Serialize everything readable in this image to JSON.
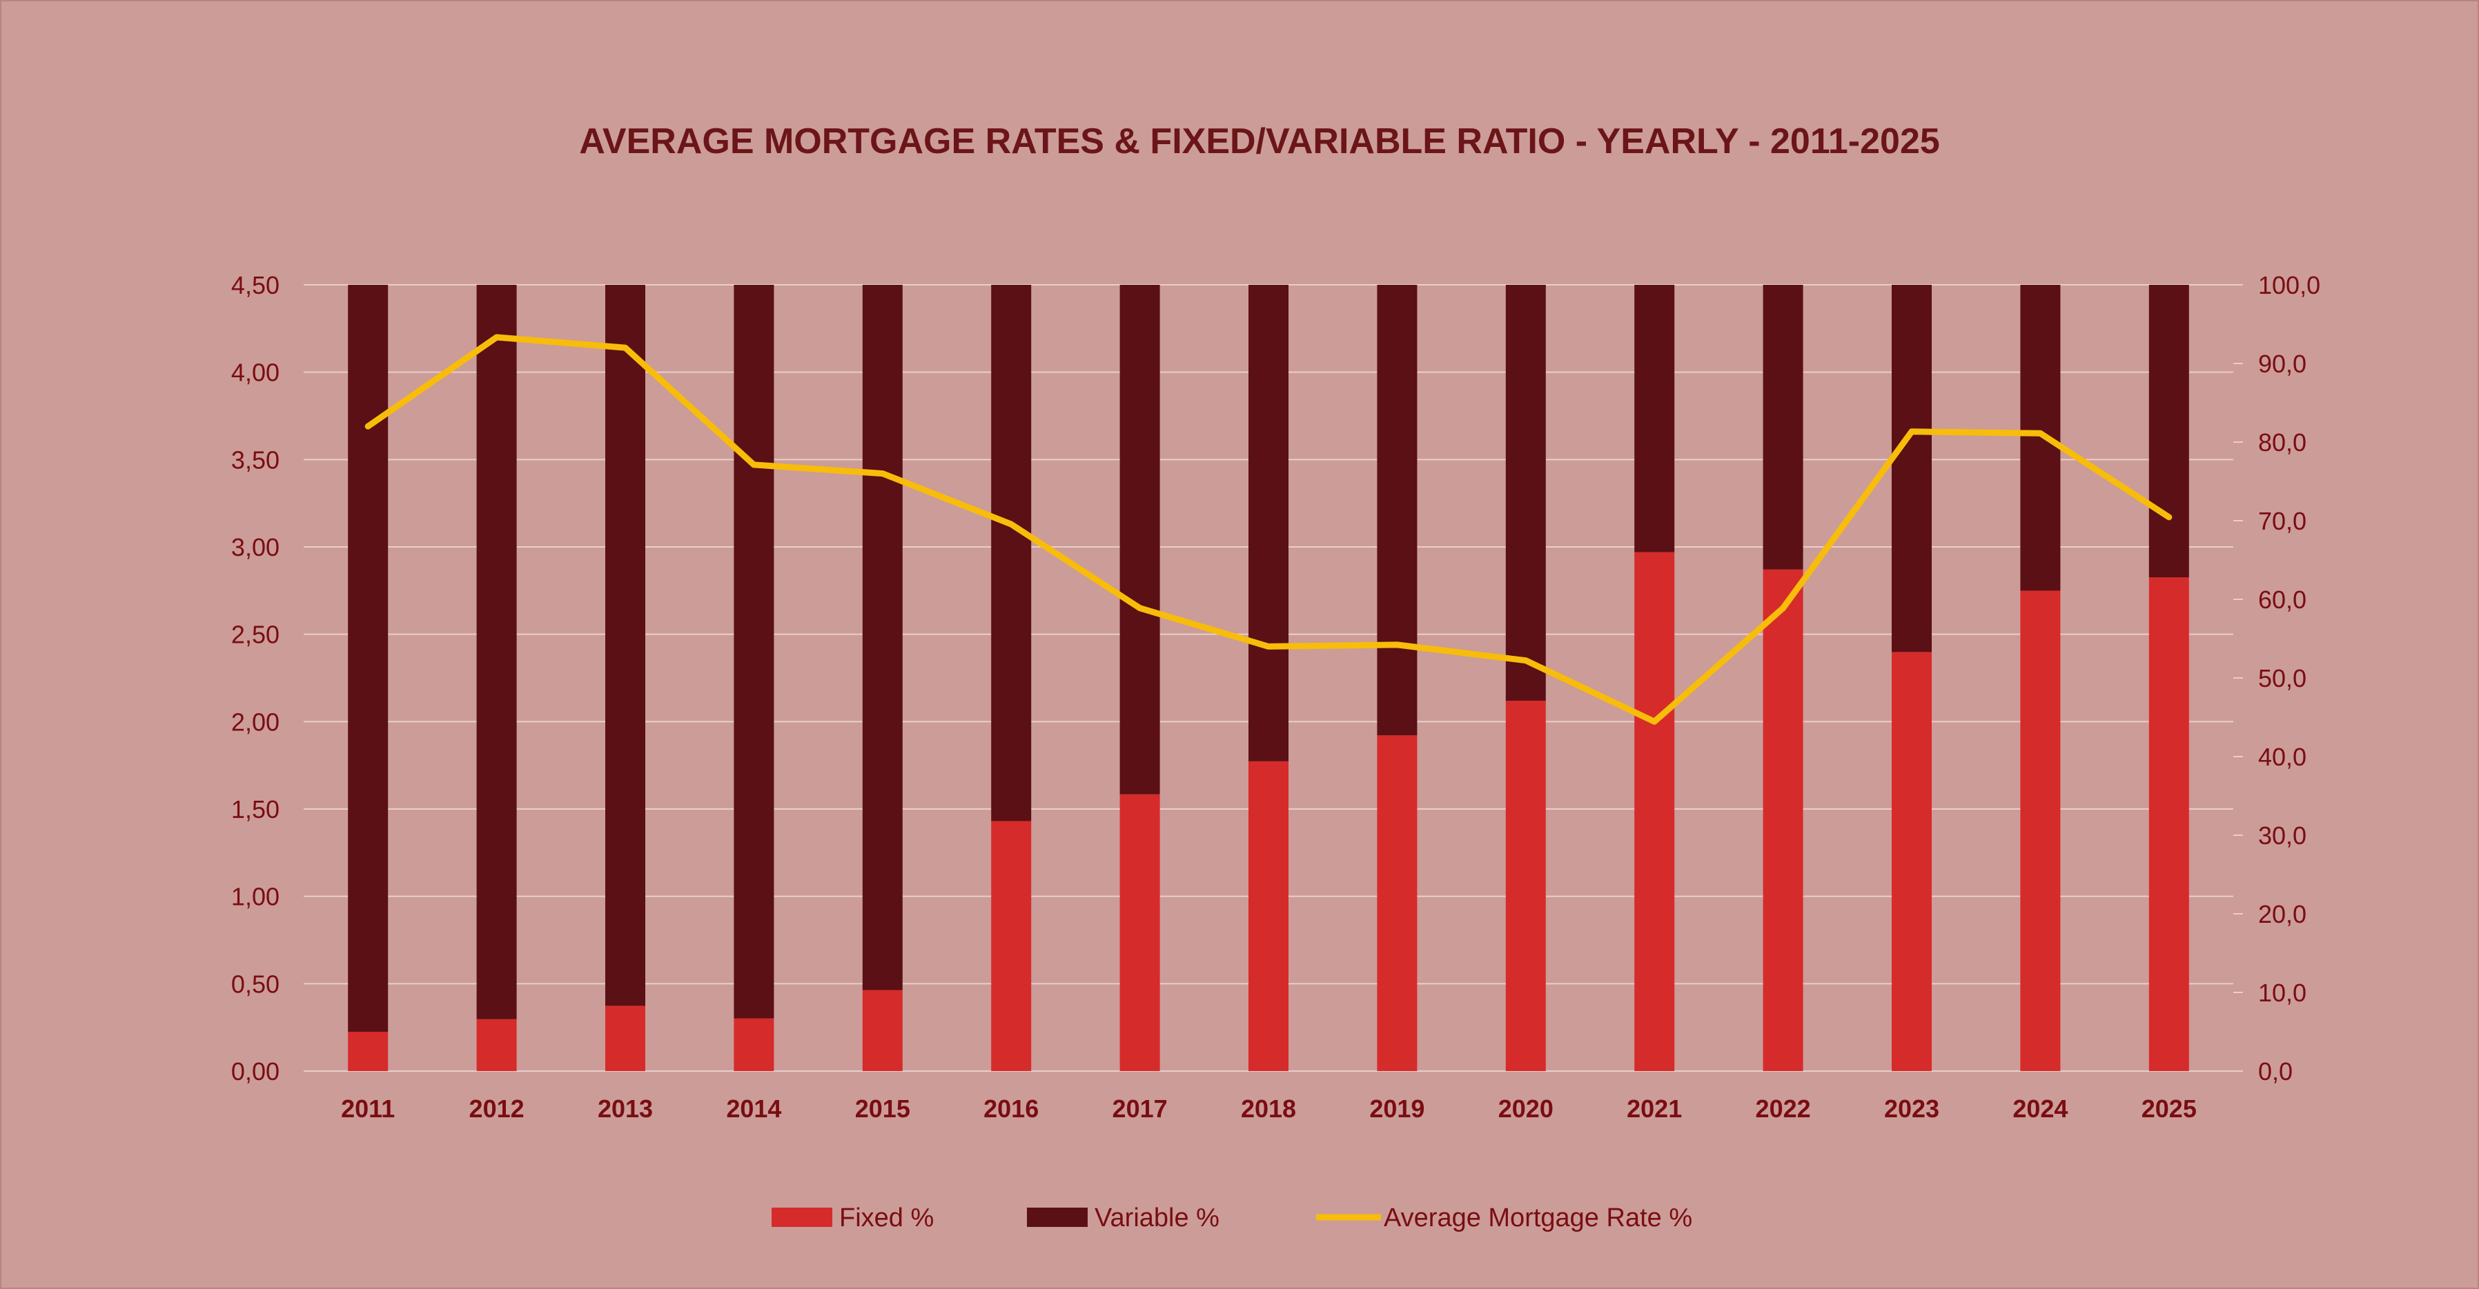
{
  "colors": {
    "background": "#cc9c98",
    "border": "#b98480",
    "title": "#6b1519",
    "fixed": "#d62b2b",
    "variable": "#5a1014",
    "line": "#f7bd0a",
    "grid": "#e8cfcb",
    "axis_text": "#7a0d12"
  },
  "chart_data": {
    "type": "bar",
    "stacked": true,
    "title": "AVERAGE MORTGAGE RATES & FIXED/VARIABLE RATIO - YEARLY - 2011-2025",
    "categories": [
      "2011",
      "2012",
      "2013",
      "2014",
      "2015",
      "2016",
      "2017",
      "2018",
      "2019",
      "2020",
      "2021",
      "2022",
      "2023",
      "2024",
      "2025"
    ],
    "series": [
      {
        "name": "Fixed %",
        "type": "bar",
        "axis": "right",
        "values": [
          5.0,
          6.6,
          8.3,
          6.7,
          10.3,
          31.8,
          35.2,
          39.4,
          42.7,
          47.1,
          66.0,
          63.8,
          53.3,
          61.1,
          62.8
        ]
      },
      {
        "name": "Variable %",
        "type": "bar",
        "axis": "right",
        "values": [
          95.0,
          93.4,
          91.7,
          93.3,
          89.7,
          68.2,
          64.8,
          60.6,
          57.3,
          52.9,
          34.0,
          36.2,
          46.7,
          38.9,
          37.2
        ]
      },
      {
        "name": "Average Mortgage Rate %",
        "type": "line",
        "axis": "left",
        "values": [
          3.69,
          4.2,
          4.14,
          3.47,
          3.42,
          3.13,
          2.65,
          2.43,
          2.44,
          2.35,
          2.0,
          2.65,
          3.66,
          3.65,
          3.17
        ]
      }
    ],
    "y_left": {
      "min": 0,
      "max": 4.5,
      "ticks": [
        "0,00",
        "0,50",
        "1,00",
        "1,50",
        "2,00",
        "2,50",
        "3,00",
        "3,50",
        "4,00",
        "4,50"
      ]
    },
    "y_right": {
      "min": 0,
      "max": 100,
      "ticks": [
        "0,0",
        "10,0",
        "20,0",
        "30,0",
        "40,0",
        "50,0",
        "60,0",
        "70,0",
        "80,0",
        "90,0",
        "100,0"
      ]
    },
    "grid": true,
    "legend_position": "bottom"
  }
}
